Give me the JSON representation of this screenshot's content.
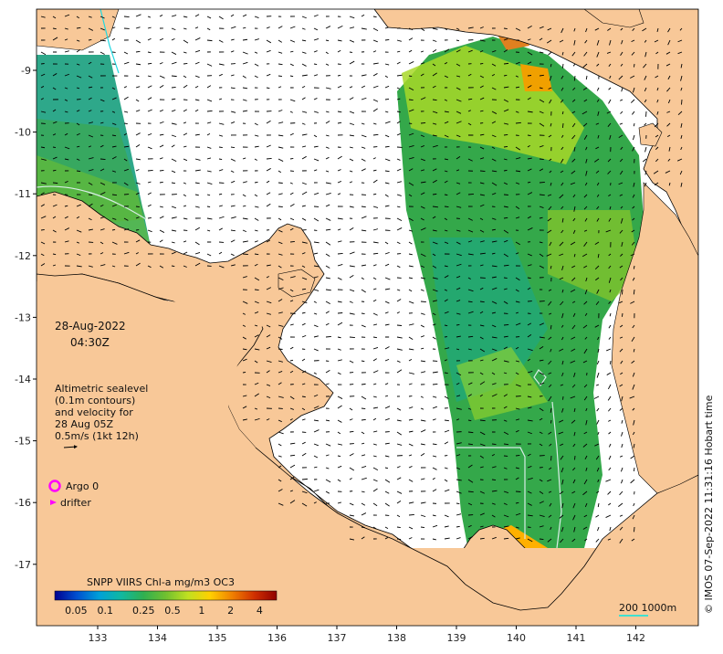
{
  "map": {
    "colors": {
      "land": "#f8c898",
      "sea": "#ffffff",
      "coast": "#000000",
      "arrow": "#000000",
      "contour": "#cfe8e0",
      "argo": "#ff00ff",
      "drifter": "#ff00ff",
      "scale": "#40e0d0"
    },
    "lon_ticks": [
      "133",
      "134",
      "135",
      "136",
      "137",
      "138",
      "139",
      "140",
      "141",
      "142"
    ],
    "lat_ticks": [
      "-9",
      "-10",
      "-11",
      "-12",
      "-13",
      "-14",
      "-15",
      "-16",
      "-17"
    ],
    "date_label": "28-Aug-2022",
    "time_label": "04:30Z",
    "legend_lines": [
      "Altimetric sealevel",
      "(0.1m contours)",
      "and velocity for",
      "28 Aug 05Z",
      "0.5m/s (1kt 12h)"
    ],
    "argo_label": "Argo 0",
    "drifter_label": "drifter",
    "colorbar": {
      "title": "SNPP VIIRS Chl-a mg/m3 OC3",
      "ticks": [
        "0.05",
        "0.1",
        "0.25",
        "0.5",
        "1",
        "2",
        "4"
      ],
      "stops": [
        "#000090",
        "#0050d0",
        "#00a0d8",
        "#10b8a0",
        "#30b050",
        "#70c030",
        "#c0e020",
        "#ffd000",
        "#f08000",
        "#d03000",
        "#900000"
      ]
    },
    "scale_label": "200  1000m",
    "credit": "© IMOS 07-Sep-2022 11:31:16 Hobart time"
  }
}
